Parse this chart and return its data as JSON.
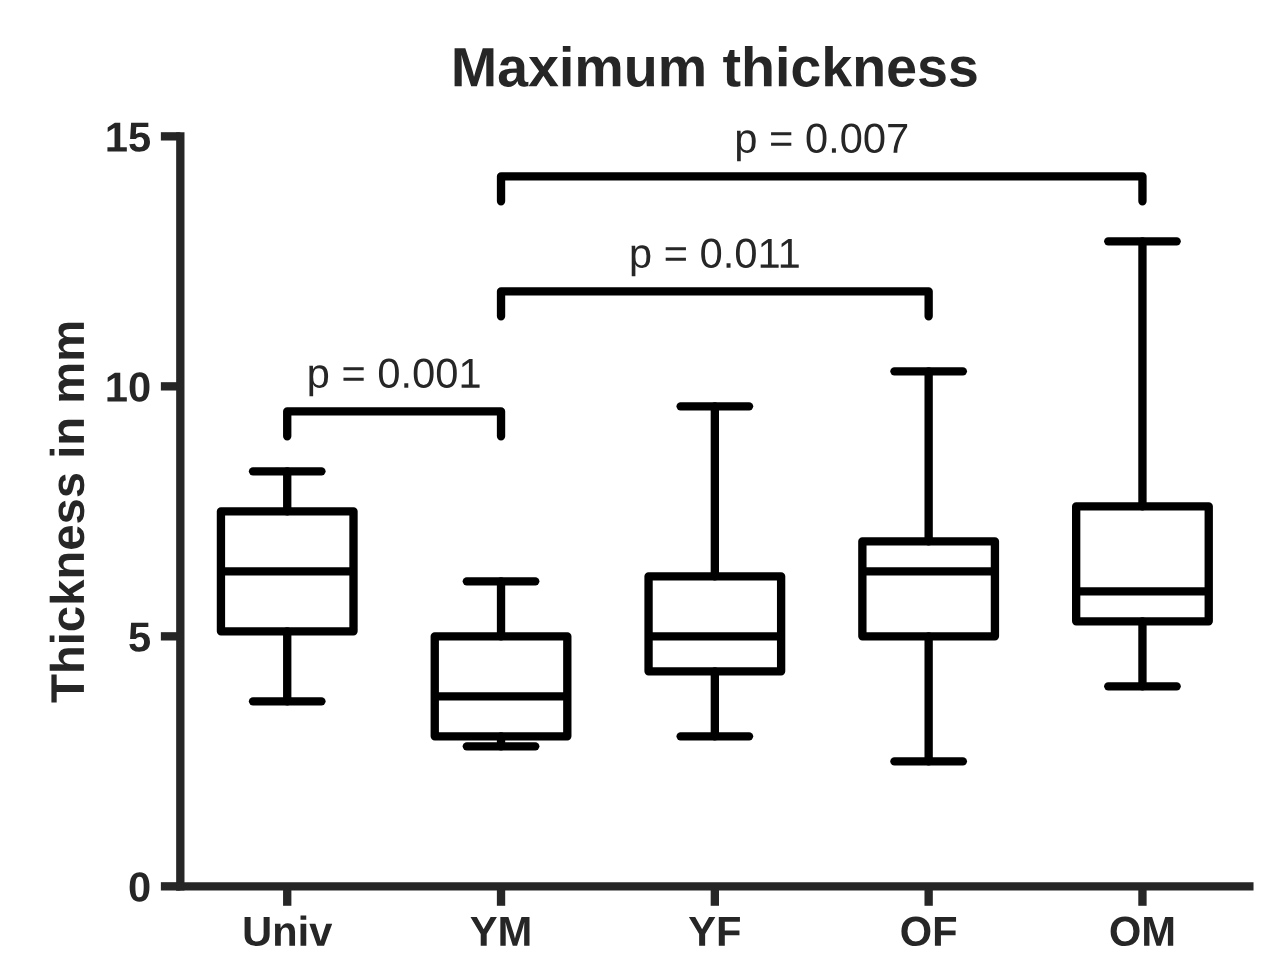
{
  "chart_data": {
    "type": "box",
    "title": "Maximum thickness",
    "ylabel": "Thickness in mm",
    "categories": [
      "Univ",
      "YM",
      "YF",
      "OF",
      "OM"
    ],
    "boxes": [
      {
        "low": 3.7,
        "q1": 5.1,
        "median": 6.3,
        "q3": 7.5,
        "high": 8.3
      },
      {
        "low": 2.8,
        "q1": 3.0,
        "median": 3.8,
        "q3": 5.0,
        "high": 6.1
      },
      {
        "low": 3.0,
        "q1": 4.3,
        "median": 5.0,
        "q3": 6.2,
        "high": 9.6
      },
      {
        "low": 2.5,
        "q1": 5.0,
        "median": 6.3,
        "q3": 6.9,
        "high": 10.3
      },
      {
        "low": 4.0,
        "q1": 5.3,
        "median": 5.9,
        "q3": 7.6,
        "high": 12.9
      }
    ],
    "ylim": [
      0,
      15
    ],
    "yticks": [
      0,
      5,
      10,
      15
    ],
    "grid": false,
    "annotations": [
      "p = 0.001",
      "p = 0.011",
      "p = 0.007"
    ]
  }
}
